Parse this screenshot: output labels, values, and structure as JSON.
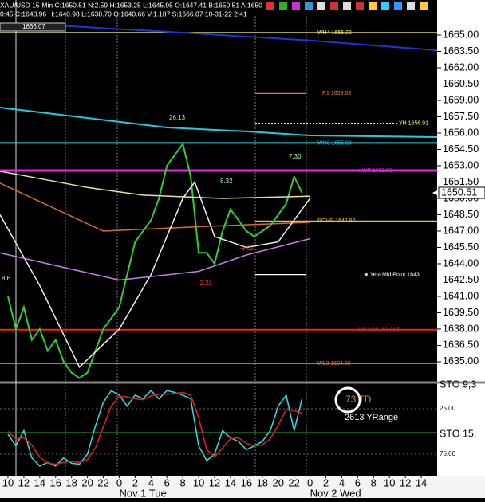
{
  "header": {
    "line1": "XAU/USD 15-Min C:1650.51 N:2.59 H:1653.25 L:1645.95 O:1647.41 B:1650.51 A:1650",
    "line2": "0:45 C:1640.96 H:1640.98 L:1638.70 O:1640.66 V:1.187 S:1666.07 10-31-22 2:41"
  },
  "chart_data": [
    {
      "type": "line",
      "xlim": [
        -1,
        54
      ],
      "xticks": [
        {
          "value": 0,
          "label": "10"
        },
        {
          "value": 2,
          "label": "12"
        },
        {
          "value": 4,
          "label": "14"
        },
        {
          "value": 6,
          "label": "16"
        },
        {
          "value": 8,
          "label": "18"
        },
        {
          "value": 10,
          "label": "20"
        },
        {
          "value": 12,
          "label": "22"
        },
        {
          "value": 14,
          "label": "0"
        },
        {
          "value": 16,
          "label": "2"
        },
        {
          "value": 18,
          "label": "4"
        },
        {
          "value": 20,
          "label": "6"
        },
        {
          "value": 22,
          "label": "8"
        },
        {
          "value": 24,
          "label": "10"
        },
        {
          "value": 26,
          "label": "12"
        },
        {
          "value": 28,
          "label": "14"
        },
        {
          "value": 30,
          "label": "16"
        },
        {
          "value": 32,
          "label": "18"
        },
        {
          "value": 34,
          "label": "20"
        },
        {
          "value": 36,
          "label": "22"
        },
        {
          "value": 38,
          "label": "0"
        },
        {
          "value": 40,
          "label": "2"
        },
        {
          "value": 42,
          "label": "4"
        },
        {
          "value": 44,
          "label": "6"
        },
        {
          "value": 46,
          "label": "8"
        },
        {
          "value": 48,
          "label": "10"
        },
        {
          "value": 50,
          "label": "12"
        },
        {
          "value": 52,
          "label": "14"
        }
      ],
      "date_labels": [
        {
          "value": 14,
          "label": "Nov 1 Tue"
        },
        {
          "value": 38,
          "label": "Nov 2 Wed"
        }
      ],
      "ylim": [
        1633.24,
        1668.22
      ],
      "yticks": [
        {
          "value": 1635,
          "label": "1635.00"
        },
        {
          "value": 1636.5,
          "label": "1636.50"
        },
        {
          "value": 1638,
          "label": "1638.00"
        },
        {
          "value": 1639.5,
          "label": "1639.50"
        },
        {
          "value": 1641,
          "label": "1641.00"
        },
        {
          "value": 1642.5,
          "label": "1642.50"
        },
        {
          "value": 1644,
          "label": "1644.00"
        },
        {
          "value": 1645.5,
          "label": "1645.50"
        },
        {
          "value": 1647,
          "label": "1647.00"
        },
        {
          "value": 1648.5,
          "label": "1648.50"
        },
        {
          "value": 1650,
          "label": "1650.00"
        },
        {
          "value": 1651.5,
          "label": "1651.50"
        },
        {
          "value": 1653,
          "label": "1653.00"
        },
        {
          "value": 1654.5,
          "label": "1654.50"
        },
        {
          "value": 1656,
          "label": "1656.00"
        },
        {
          "value": 1657.5,
          "label": "1657.50"
        },
        {
          "value": 1659,
          "label": "1659.00"
        },
        {
          "value": 1660.5,
          "label": "1660.50"
        },
        {
          "value": 1662,
          "label": "1662.00"
        },
        {
          "value": 1663.5,
          "label": "1663.50"
        },
        {
          "value": 1665,
          "label": "1665.00"
        }
      ],
      "last_price": 1650.51,
      "series": [
        {
          "name": "XAU/USD",
          "color": "#33cc33",
          "x": [
            0,
            1,
            2,
            3,
            4,
            5,
            6,
            7,
            8,
            9,
            10,
            11,
            12,
            13,
            14,
            15,
            16,
            17,
            18,
            19,
            20,
            21,
            22,
            23,
            24,
            25,
            26,
            27,
            28,
            29,
            30,
            31,
            32,
            33,
            34,
            35,
            36,
            37
          ],
          "values": [
            1641,
            1638,
            1640,
            1637,
            1638,
            1636,
            1637,
            1635,
            1634,
            1633.5,
            1634,
            1636,
            1638,
            1639,
            1640,
            1643,
            1646,
            1647,
            1648,
            1650,
            1653,
            1654,
            1655,
            1652,
            1645,
            1645,
            1644,
            1647,
            1649,
            1648,
            1647,
            1646.5,
            1647,
            1647.5,
            1648.5,
            1649.5,
            1652,
            1650.51
          ]
        },
        {
          "name": "MA blue",
          "color": "#2233dd",
          "x": [
            3,
            20,
            38,
            54
          ],
          "values": [
            1666.0,
            1665.3,
            1664.5,
            1663.6
          ]
        },
        {
          "name": "MA cyan",
          "color": "#22ccdd",
          "x": [
            -1,
            10,
            20,
            30,
            38,
            54
          ],
          "values": [
            1658.34,
            1657.39,
            1656.51,
            1656.15,
            1655.78,
            1655.63
          ]
        },
        {
          "name": "MA yellow",
          "color": "#e8e0a0",
          "x": [
            -1,
            10,
            17,
            27,
            38
          ],
          "values": [
            1652.5,
            1651.0,
            1650.3,
            1650.0,
            1650.2
          ]
        },
        {
          "name": "MA orange",
          "color": "#d07030",
          "x": [
            -1,
            12,
            24,
            38
          ],
          "values": [
            1651.4,
            1647.0,
            1647.4,
            1647.8
          ]
        },
        {
          "name": "MA white",
          "color": "#f0f0f0",
          "x": [
            -1,
            4,
            9,
            14,
            18,
            22,
            23.5,
            26,
            30,
            34,
            38
          ],
          "values": [
            1648.5,
            1642,
            1634.5,
            1638,
            1643,
            1650,
            1651.5,
            1646.5,
            1645.5,
            1646,
            1650
          ]
        },
        {
          "name": "MA purple",
          "color": "#c080e0",
          "x": [
            -1,
            14,
            24,
            30,
            38
          ],
          "values": [
            1645,
            1642.5,
            1643.3,
            1644.8,
            1646.3
          ]
        }
      ],
      "levels": [
        {
          "label": "WH4 1665.22",
          "value": 1665.22,
          "color": "#ffff66"
        },
        {
          "label": "R1 1659.63",
          "value": 1659.63,
          "color": "#e08030"
        },
        {
          "label": "YH 1656.91",
          "value": 1656.91,
          "color": "#ffff66"
        },
        {
          "label": "WH3 1655.09",
          "value": 1655.09,
          "color": "#22ccdd"
        },
        {
          "label": "◄◄ WP 1652.56",
          "value": 1652.56,
          "color": "#ee22ee"
        },
        {
          "label": "ROVR 1647.92",
          "value": 1647.92,
          "color": "#e8c040"
        },
        {
          "label": "◄ Yest Mid Point 1643.",
          "value": 1643,
          "color": "#ffffff"
        },
        {
          "label": "LH Low 1637.94",
          "value": 1637.94,
          "color": "#ee2222"
        },
        {
          "label": "WL3 1634.83",
          "value": 1634.83,
          "color": "#e08030"
        }
      ],
      "annotations": [
        "1666.07",
        "26.13",
        "7.30",
        "8.32",
        "-9.02",
        "-2.21",
        "8.6"
      ]
    },
    {
      "type": "line",
      "xlim": [
        -1,
        54
      ],
      "ylim": [
        0,
        100
      ],
      "inverted": true,
      "yticks": [
        {
          "value": 25,
          "label": "25.00"
        },
        {
          "value": 75,
          "label": "75.00"
        }
      ],
      "indicator_labels": [
        "STO 9,3",
        "STO 15,"
      ],
      "annotations": [
        "73 TD",
        "2613 YRange"
      ],
      "series": [
        {
          "name": "STO fast",
          "color": "#33dddd",
          "x": [
            0,
            1,
            2,
            3,
            4,
            5,
            6,
            7,
            8,
            9,
            10,
            11,
            12,
            13,
            14,
            15,
            16,
            17,
            18,
            19,
            20,
            21,
            22,
            23,
            24,
            25,
            26,
            27,
            28,
            29,
            30,
            31,
            32,
            33,
            34,
            35,
            36,
            37
          ],
          "values": [
            53,
            66,
            49,
            79,
            88,
            84,
            88,
            79,
            85,
            86,
            75,
            44,
            18,
            5,
            10,
            22,
            10,
            14,
            5,
            14,
            5,
            7,
            10,
            14,
            66,
            82,
            75,
            49,
            57,
            61,
            70,
            66,
            61,
            49,
            22,
            10,
            49,
            14
          ]
        },
        {
          "name": "STO slow",
          "color": "#dd2222",
          "x": [
            0,
            1,
            2,
            3,
            4,
            5,
            6,
            7,
            8,
            9,
            10,
            11,
            12,
            13,
            14,
            15,
            16,
            17,
            18,
            19,
            20,
            21,
            22,
            23,
            24,
            25,
            26,
            27,
            28,
            29,
            30,
            31,
            32,
            33,
            34,
            35,
            36,
            37
          ],
          "values": [
            50,
            58,
            57,
            65,
            78,
            85,
            86,
            84,
            83,
            84,
            81,
            68,
            45,
            22,
            11,
            12,
            14,
            15,
            11,
            9,
            9,
            8,
            7,
            10,
            35,
            70,
            78,
            68,
            58,
            57,
            63,
            66,
            65,
            58,
            43,
            26,
            27,
            30
          ]
        }
      ]
    }
  ]
}
